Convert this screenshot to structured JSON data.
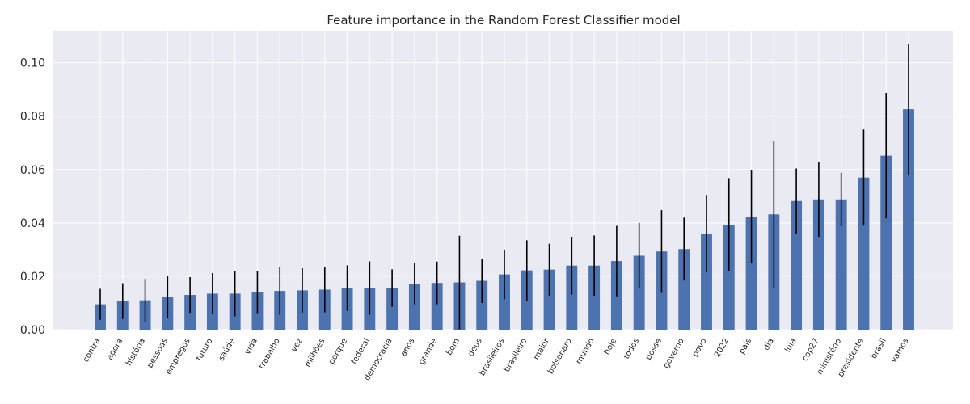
{
  "chart_data": {
    "type": "bar",
    "title": "Feature importance in the Random Forest Classifier model",
    "xlabel": "",
    "ylabel": "",
    "ylim": [
      0,
      0.112
    ],
    "yticks": [
      "0.00",
      "0.02",
      "0.04",
      "0.06",
      "0.08",
      "0.10"
    ],
    "grid": true,
    "error_bars": true,
    "bar_color": "#4c72b0",
    "errorbar_color": "#000000",
    "background_color": "#eaeaf2",
    "grid_color": "#ffffff",
    "categories": [
      "contra",
      "agora",
      "história",
      "pessoas",
      "empregos",
      "futuro",
      "saúde",
      "vida",
      "trabalho",
      "vez",
      "milhões",
      "porque",
      "federal",
      "democracia",
      "anos",
      "grande",
      "bom",
      "deus",
      "brasileiros",
      "brasileiro",
      "maior",
      "bolsonaro",
      "mundo",
      "hoje",
      "todos",
      "posse",
      "governo",
      "povo",
      "2022",
      "país",
      "dia",
      "lula",
      "cop27",
      "ministério",
      "presidente",
      "brasil",
      "vamos"
    ],
    "values": [
      0.0095,
      0.0107,
      0.011,
      0.0122,
      0.013,
      0.0135,
      0.0135,
      0.0141,
      0.0145,
      0.0147,
      0.015,
      0.0156,
      0.0156,
      0.0156,
      0.0172,
      0.0175,
      0.0177,
      0.0183,
      0.0207,
      0.0222,
      0.0225,
      0.024,
      0.024,
      0.0257,
      0.0277,
      0.0293,
      0.0302,
      0.036,
      0.0393,
      0.0423,
      0.0432,
      0.0482,
      0.0488,
      0.0488,
      0.057,
      0.0652,
      0.0826
    ],
    "errors": [
      0.0058,
      0.0067,
      0.008,
      0.0078,
      0.0067,
      0.0077,
      0.0085,
      0.0079,
      0.0089,
      0.0083,
      0.0085,
      0.0085,
      0.01,
      0.007,
      0.0077,
      0.008,
      0.0175,
      0.0083,
      0.0093,
      0.0113,
      0.0097,
      0.0108,
      0.0113,
      0.0132,
      0.0123,
      0.0155,
      0.0118,
      0.0145,
      0.0175,
      0.0175,
      0.0275,
      0.0122,
      0.014,
      0.01,
      0.018,
      0.0235,
      0.0245
    ]
  }
}
